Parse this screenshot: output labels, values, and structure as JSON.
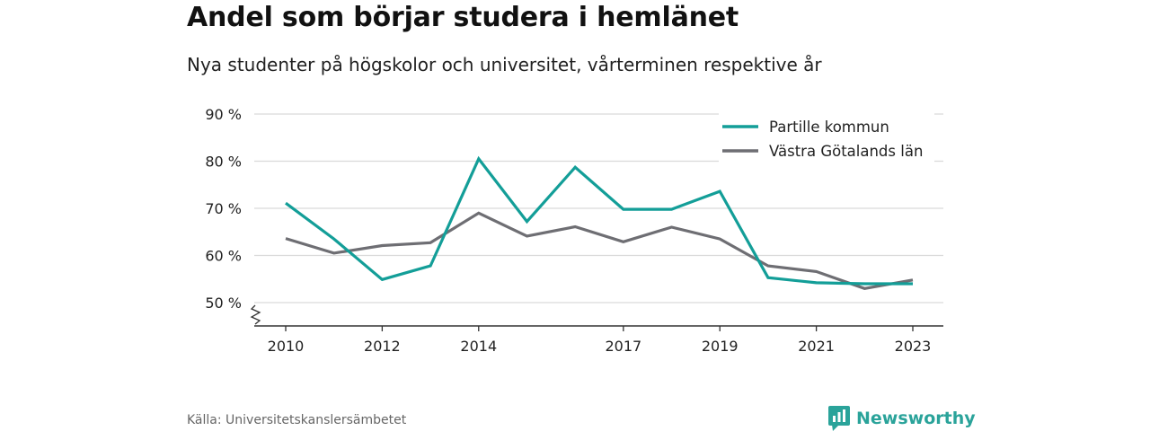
{
  "header": {
    "title": "Andel som börjar studera i hemlänet",
    "subtitle": "Nya studenter på högskolor och universitet, vårterminen respektive år"
  },
  "footer": {
    "source": "Källa: Universitetskanslersämbetet",
    "brand": "Newsworthy",
    "brand_icon": "bar-chart-speech-icon"
  },
  "colors": {
    "partille": "#139e98",
    "vg": "#6e6e73",
    "grid": "#d9d9d9",
    "axis": "#333333",
    "brand": "#2aa39a"
  },
  "chart_data": {
    "type": "line",
    "title": "Andel som börjar studera i hemlänet",
    "subtitle": "Nya studenter på högskolor och universitet, vårterminen respektive år",
    "x": [
      2010,
      2011,
      2012,
      2013,
      2014,
      2015,
      2016,
      2017,
      2018,
      2019,
      2020,
      2021,
      2022,
      2023
    ],
    "x_ticks": [
      2010,
      2012,
      2014,
      2017,
      2019,
      2021,
      2023
    ],
    "y_ticks": [
      50,
      60,
      70,
      80,
      90
    ],
    "y_tick_labels": [
      "50 %",
      "60 %",
      "70 %",
      "80 %",
      "90 %"
    ],
    "ylim": [
      45,
      90
    ],
    "y_axis_break": true,
    "grid": true,
    "legend_position": "top-right",
    "series": [
      {
        "name": "Partille kommun",
        "color": "#139e98",
        "values": [
          71.1,
          63.5,
          54.9,
          57.8,
          80.5,
          67.2,
          78.7,
          69.8,
          69.8,
          73.6,
          55.3,
          54.2,
          54.0,
          54.0
        ]
      },
      {
        "name": "Västra Götalands län",
        "color": "#6e6e73",
        "values": [
          63.6,
          60.5,
          62.1,
          62.7,
          69.0,
          64.1,
          66.1,
          62.9,
          66.0,
          63.5,
          57.8,
          56.6,
          53.0,
          54.8
        ]
      }
    ]
  }
}
